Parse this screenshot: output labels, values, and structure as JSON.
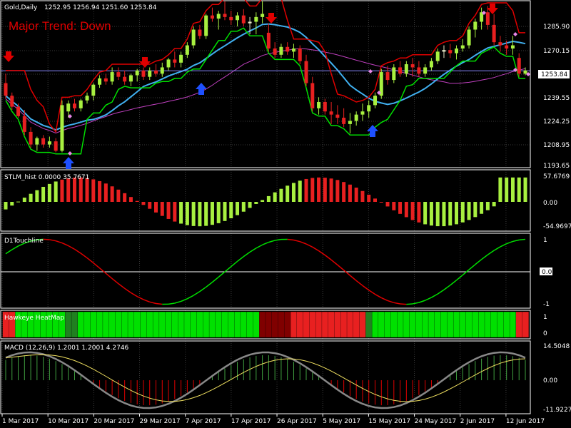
{
  "colors": {
    "bg": "#000000",
    "frame": "#ffffff",
    "grid": "#3a3a3a",
    "bull": "#a8f040",
    "bear": "#e82020",
    "neutral": "#e8e8c8",
    "green": "#00e000",
    "red": "#e00000",
    "cyan": "#40b0f0",
    "magenta": "#c040c0",
    "blue": "#1e50ff",
    "pink": "#e888e8",
    "price": "#8888ff",
    "yellow": "#f0e060",
    "gray": "#888888"
  },
  "main": {
    "symbol": "Gold,Daily",
    "ohlc": "1252.95 1256.94 1251.60 1253.84",
    "trend_text": "Major Trend: Down",
    "price_labels": [
      "1285.90",
      "1270.15",
      "1255.05",
      "1239.55",
      "1224.25",
      "1208.95",
      "1193.65"
    ],
    "current_price": "1253.84",
    "ylim": [
      1193.65,
      1297
    ]
  },
  "stlm": {
    "title": "STLM_hist 0.0000 35.7671",
    "labels": [
      "57.6769",
      "0.00",
      "-54.9697"
    ]
  },
  "touch": {
    "title": "D1Touchline",
    "labels": [
      "1",
      "0.00",
      "-1"
    ]
  },
  "heat": {
    "title": "Hawkeye HeatMap",
    "labels": [
      "1",
      "0"
    ]
  },
  "macd": {
    "title": "MACD (12,26,9) 1.2001 1.2001 4.2746",
    "labels": [
      "14.5048",
      "0.00",
      "-11.9227"
    ]
  },
  "dates": [
    "1 Mar 2017",
    "10 Mar 2017",
    "20 Mar 2017",
    "29 Mar 2017",
    "7 Apr 2017",
    "17 Apr 2017",
    "26 Apr 2017",
    "5 May 2017",
    "15 May 2017",
    "24 May 2017",
    "2 Jun 2017",
    "12 Jun 2017"
  ],
  "chart_data": {
    "type": "candlestick",
    "ohlc": [
      [
        1246,
        1252,
        1236,
        1238
      ],
      [
        1238,
        1240,
        1229,
        1231
      ],
      [
        1231,
        1233,
        1224,
        1225
      ],
      [
        1225,
        1229,
        1213,
        1215
      ],
      [
        1215,
        1218,
        1205,
        1207
      ],
      [
        1207,
        1212,
        1203,
        1211
      ],
      [
        1211,
        1213,
        1205,
        1207
      ],
      [
        1207,
        1212,
        1205,
        1209
      ],
      [
        1209,
        1211,
        1202,
        1203
      ],
      [
        1203,
        1235,
        1202,
        1232
      ],
      [
        1228,
        1235,
        1224,
        1233
      ],
      [
        1233,
        1236,
        1228,
        1230
      ],
      [
        1230,
        1236,
        1228,
        1235
      ],
      [
        1235,
        1240,
        1233,
        1238
      ],
      [
        1238,
        1246,
        1235,
        1245
      ],
      [
        1245,
        1251,
        1243,
        1249
      ],
      [
        1249,
        1252,
        1245,
        1247
      ],
      [
        1247,
        1256,
        1245,
        1253
      ],
      [
        1253,
        1256,
        1248,
        1250
      ],
      [
        1250,
        1254,
        1245,
        1247
      ],
      [
        1247,
        1252,
        1244,
        1251
      ],
      [
        1251,
        1255,
        1247,
        1254
      ],
      [
        1254,
        1256,
        1248,
        1250
      ],
      [
        1250,
        1256,
        1248,
        1254
      ],
      [
        1254,
        1258,
        1250,
        1252
      ],
      [
        1252,
        1259,
        1250,
        1256
      ],
      [
        1256,
        1262,
        1254,
        1261
      ],
      [
        1261,
        1266,
        1256,
        1259
      ],
      [
        1259,
        1266,
        1256,
        1264
      ],
      [
        1264,
        1272,
        1262,
        1270
      ],
      [
        1270,
        1282,
        1268,
        1280
      ],
      [
        1280,
        1283,
        1274,
        1276
      ],
      [
        1276,
        1290,
        1274,
        1289
      ],
      [
        1289,
        1294,
        1285,
        1287
      ],
      [
        1287,
        1292,
        1280,
        1290
      ],
      [
        1290,
        1298,
        1286,
        1288
      ],
      [
        1288,
        1292,
        1283,
        1286
      ],
      [
        1286,
        1291,
        1282,
        1289
      ],
      [
        1289,
        1293,
        1282,
        1284
      ],
      [
        1284,
        1288,
        1277,
        1285
      ],
      [
        1285,
        1291,
        1277,
        1288
      ],
      [
        1288,
        1298,
        1284,
        1290
      ],
      [
        1278,
        1284,
        1266,
        1268
      ],
      [
        1268,
        1272,
        1262,
        1264
      ],
      [
        1264,
        1271,
        1262,
        1269
      ],
      [
        1269,
        1272,
        1264,
        1266
      ],
      [
        1266,
        1271,
        1262,
        1268
      ],
      [
        1268,
        1270,
        1258,
        1260
      ],
      [
        1260,
        1264,
        1244,
        1246
      ],
      [
        1246,
        1250,
        1228,
        1230
      ],
      [
        1230,
        1237,
        1226,
        1234
      ],
      [
        1234,
        1236,
        1226,
        1228
      ],
      [
        1228,
        1234,
        1220,
        1226
      ],
      [
        1226,
        1232,
        1220,
        1224
      ],
      [
        1224,
        1230,
        1218,
        1220
      ],
      [
        1220,
        1227,
        1214,
        1222
      ],
      [
        1222,
        1228,
        1219,
        1226
      ],
      [
        1226,
        1233,
        1222,
        1228
      ],
      [
        1228,
        1235,
        1224,
        1232
      ],
      [
        1232,
        1240,
        1230,
        1238
      ],
      [
        1238,
        1255,
        1236,
        1253
      ],
      [
        1253,
        1257,
        1245,
        1248
      ],
      [
        1248,
        1258,
        1246,
        1256
      ],
      [
        1256,
        1260,
        1250,
        1252
      ],
      [
        1252,
        1260,
        1250,
        1258
      ],
      [
        1258,
        1262,
        1250,
        1256
      ],
      [
        1256,
        1260,
        1250,
        1252
      ],
      [
        1252,
        1258,
        1250,
        1256
      ],
      [
        1256,
        1262,
        1254,
        1260
      ],
      [
        1260,
        1268,
        1258,
        1266
      ],
      [
        1266,
        1270,
        1262,
        1267
      ],
      [
        1267,
        1271,
        1262,
        1265
      ],
      [
        1265,
        1270,
        1261,
        1268
      ],
      [
        1268,
        1274,
        1266,
        1270
      ],
      [
        1270,
        1282,
        1268,
        1280
      ],
      [
        1280,
        1287,
        1275,
        1285
      ],
      [
        1285,
        1294,
        1280,
        1291
      ],
      [
        1291,
        1295,
        1280,
        1283
      ],
      [
        1283,
        1290,
        1270,
        1272
      ],
      [
        1272,
        1276,
        1266,
        1270
      ],
      [
        1270,
        1273,
        1264,
        1268
      ],
      [
        1268,
        1276,
        1264,
        1270
      ],
      [
        1262,
        1265,
        1250,
        1252
      ],
      [
        1252,
        1256,
        1251,
        1254
      ]
    ]
  }
}
